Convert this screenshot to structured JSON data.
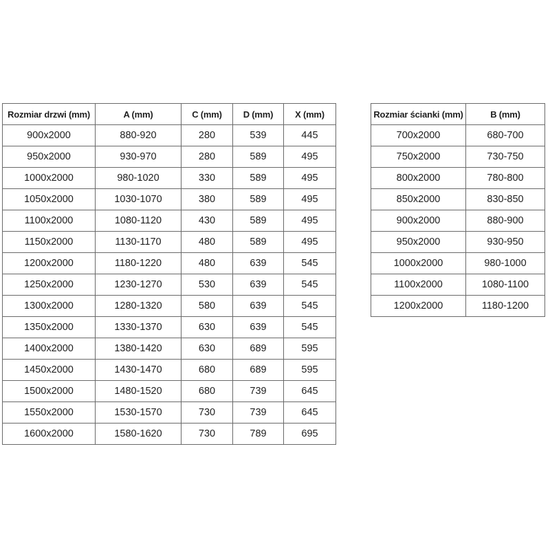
{
  "page": {
    "background_color": "#ffffff",
    "text_color": "#1f1f1f",
    "border_color": "#696969"
  },
  "door_table": {
    "headers": [
      "Rozmiar drzwi (mm)",
      "A (mm)",
      "C (mm)",
      "D (mm)",
      "X (mm)"
    ],
    "rows": [
      [
        "900x2000",
        "880-920",
        "280",
        "539",
        "445"
      ],
      [
        "950x2000",
        "930-970",
        "280",
        "589",
        "495"
      ],
      [
        "1000x2000",
        "980-1020",
        "330",
        "589",
        "495"
      ],
      [
        "1050x2000",
        "1030-1070",
        "380",
        "589",
        "495"
      ],
      [
        "1100x2000",
        "1080-1120",
        "430",
        "589",
        "495"
      ],
      [
        "1150x2000",
        "1130-1170",
        "480",
        "589",
        "495"
      ],
      [
        "1200x2000",
        "1180-1220",
        "480",
        "639",
        "545"
      ],
      [
        "1250x2000",
        "1230-1270",
        "530",
        "639",
        "545"
      ],
      [
        "1300x2000",
        "1280-1320",
        "580",
        "639",
        "545"
      ],
      [
        "1350x2000",
        "1330-1370",
        "630",
        "639",
        "545"
      ],
      [
        "1400x2000",
        "1380-1420",
        "630",
        "689",
        "595"
      ],
      [
        "1450x2000",
        "1430-1470",
        "680",
        "689",
        "595"
      ],
      [
        "1500x2000",
        "1480-1520",
        "680",
        "739",
        "645"
      ],
      [
        "1550x2000",
        "1530-1570",
        "730",
        "739",
        "645"
      ],
      [
        "1600x2000",
        "1580-1620",
        "730",
        "789",
        "695"
      ]
    ]
  },
  "wall_table": {
    "headers": [
      "Rozmiar ścianki (mm)",
      "B (mm)"
    ],
    "rows": [
      [
        "700x2000",
        "680-700"
      ],
      [
        "750x2000",
        "730-750"
      ],
      [
        "800x2000",
        "780-800"
      ],
      [
        "850x2000",
        "830-850"
      ],
      [
        "900x2000",
        "880-900"
      ],
      [
        "950x2000",
        "930-950"
      ],
      [
        "1000x2000",
        "980-1000"
      ],
      [
        "1100x2000",
        "1080-1100"
      ],
      [
        "1200x2000",
        "1180-1200"
      ]
    ]
  }
}
